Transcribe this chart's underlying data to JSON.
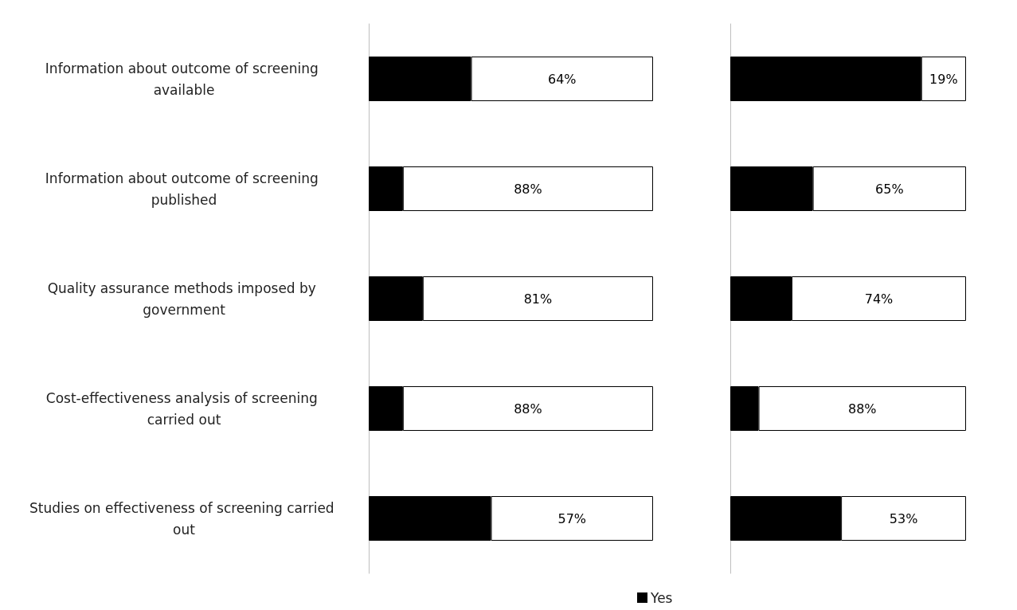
{
  "chart_data": [
    {
      "type": "bar",
      "orientation": "horizontal",
      "stacked": true,
      "categories": [
        "Information about outcome of screening available",
        "Information about outcome of screening published",
        "Quality assurance methods imposed by government",
        "Cost-effectiveness analysis of screening carried out",
        "Studies on effectiveness of screening carried out"
      ],
      "xlim": [
        0,
        100
      ],
      "tick_labels": "y",
      "legend": "bottom",
      "series": [
        {
          "name": "Yes",
          "color": "#000000",
          "values": [
            36,
            12,
            19,
            12,
            43
          ]
        },
        {
          "color": "#ffffff",
          "values": [
            64,
            88,
            81,
            88,
            57
          ],
          "value_labels": [
            "64%",
            "88%",
            "81%",
            "88%",
            "57%"
          ]
        }
      ]
    },
    {
      "type": "bar",
      "orientation": "horizontal",
      "stacked": true,
      "categories": [
        null,
        null,
        null,
        null,
        null
      ],
      "xlim": [
        0,
        100
      ],
      "tick_labels": false,
      "series": [
        {
          "color": "#000000",
          "values": [
            81,
            35,
            26,
            12,
            47
          ]
        },
        {
          "color": "#ffffff",
          "values": [
            19,
            65,
            74,
            88,
            53
          ],
          "value_labels": [
            "19%",
            "65%",
            "74%",
            "88%",
            "53%"
          ]
        }
      ]
    }
  ]
}
